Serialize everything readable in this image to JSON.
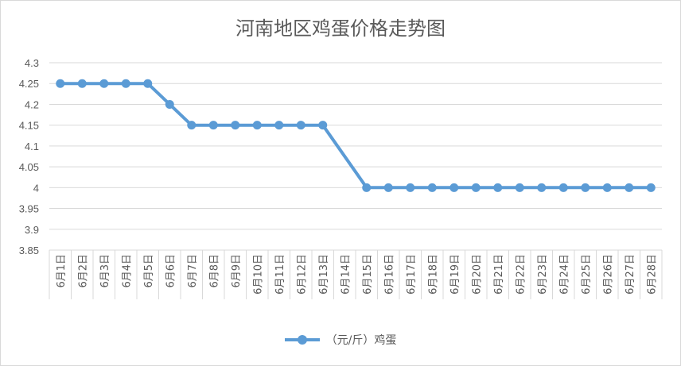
{
  "chart_data": {
    "type": "line",
    "title": "河南地区鸡蛋价格走势图",
    "categories": [
      "6月1日",
      "6月2日",
      "6月3日",
      "6月4日",
      "6月5日",
      "6月6日",
      "6月7日",
      "6月8日",
      "6月9日",
      "6月10日",
      "6月11日",
      "6月12日",
      "6月13日",
      "6月14日",
      "6月15日",
      "6月16日",
      "6月17日",
      "6月18日",
      "6月19日",
      "6月20日",
      "6月21日",
      "6月22日",
      "6月23日",
      "6月24日",
      "6月25日",
      "6月26日",
      "6月27日",
      "6月28日"
    ],
    "series": [
      {
        "name": "（元/斤）鸡蛋",
        "values": [
          4.25,
          4.25,
          4.25,
          4.25,
          4.25,
          4.2,
          4.15,
          4.15,
          4.15,
          4.15,
          4.15,
          4.15,
          4.15,
          null,
          4.0,
          4.0,
          4.0,
          4.0,
          4.0,
          4.0,
          4.0,
          4.0,
          4.0,
          4.0,
          4.0,
          4.0,
          4.0,
          4.0
        ],
        "color": "#5b9bd5"
      }
    ],
    "yticks": [
      "3.85",
      "3.9",
      "3.95",
      "4",
      "4.05",
      "4.1",
      "4.15",
      "4.2",
      "4.25",
      "4.3"
    ],
    "ylim": [
      3.85,
      4.3
    ],
    "grid": true,
    "legend": "bottom"
  }
}
